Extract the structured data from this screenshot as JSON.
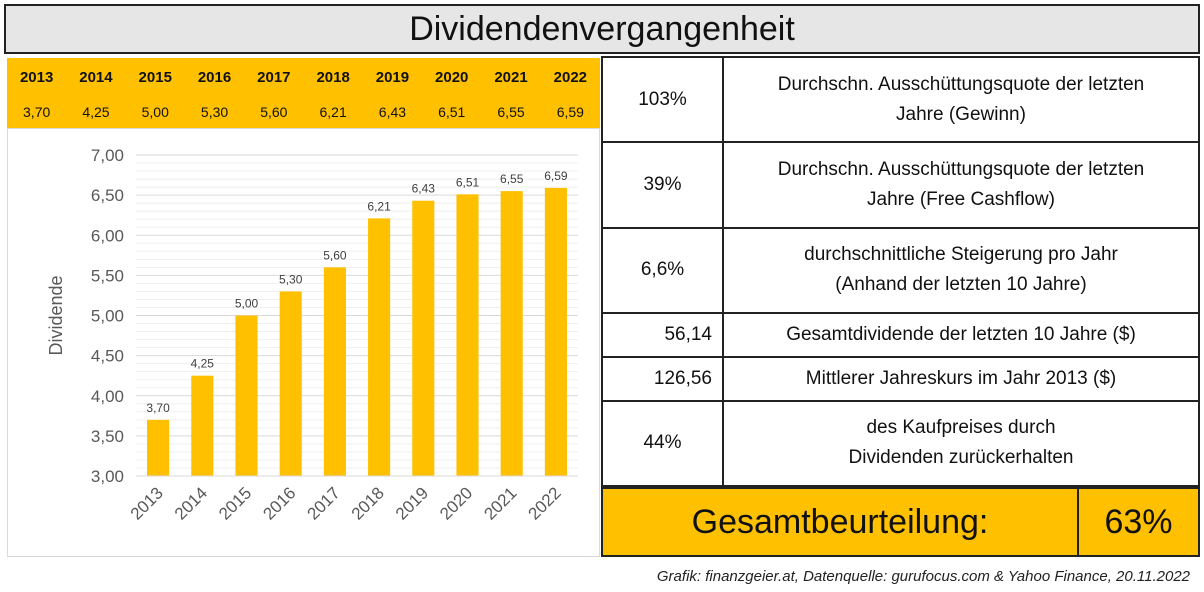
{
  "title": "Dividendenvergangenheit",
  "years": [
    "2013",
    "2014",
    "2015",
    "2016",
    "2017",
    "2018",
    "2019",
    "2020",
    "2021",
    "2022"
  ],
  "year_values": [
    "3,70",
    "4,25",
    "5,00",
    "5,30",
    "5,60",
    "6,21",
    "6,43",
    "6,51",
    "6,55",
    "6,59"
  ],
  "stats": [
    {
      "value": "103%",
      "label_line1": "Durchschn. Ausschüttungsquote der letzten",
      "label_line2": "Jahre (Gewinn)"
    },
    {
      "value": "39%",
      "label_line1": "Durchschn. Ausschüttungsquote der letzten",
      "label_line2": "Jahre (Free Cashflow)"
    },
    {
      "value": "6,6%",
      "label_line1": "durchschnittliche Steigerung pro Jahr",
      "label_line2": "(Anhand der letzten 10 Jahre)"
    },
    {
      "value": "56,14",
      "label_line1": "Gesamtdividende der letzten 10 Jahre ($)",
      "label_line2": ""
    },
    {
      "value": "126,56",
      "label_line1": "Mittlerer Jahreskurs im Jahr 2013 ($)",
      "label_line2": ""
    },
    {
      "value": "44%",
      "label_line1": "des Kaufpreises durch",
      "label_line2": "Dividenden zurückerhalten"
    }
  ],
  "rating": {
    "label": "Gesamtbeurteilung:",
    "value": "63%"
  },
  "footer": "Grafik: finanzgeier.at, Datenquelle: gurufocus.com & Yahoo Finance, 20.11.2022",
  "colors": {
    "accent": "#ffc000",
    "title_bg": "#e7e6e6",
    "bar": "#ffc000"
  },
  "chart_data": {
    "type": "bar",
    "categories": [
      "2013",
      "2014",
      "2015",
      "2016",
      "2017",
      "2018",
      "2019",
      "2020",
      "2021",
      "2022"
    ],
    "values": [
      3.7,
      4.25,
      5.0,
      5.3,
      5.6,
      6.21,
      6.43,
      6.51,
      6.55,
      6.59
    ],
    "data_labels": [
      "3,70",
      "4,25",
      "5,00",
      "5,30",
      "5,60",
      "6,21",
      "6,43",
      "6,51",
      "6,55",
      "6,59"
    ],
    "ylabel": "Dividende",
    "xlabel": "",
    "ylim": [
      3.0,
      7.0
    ],
    "yticks": [
      "3,00",
      "3,50",
      "4,00",
      "4,50",
      "5,00",
      "5,50",
      "6,00",
      "6,50",
      "7,00"
    ],
    "grid": true,
    "legend": "none"
  }
}
